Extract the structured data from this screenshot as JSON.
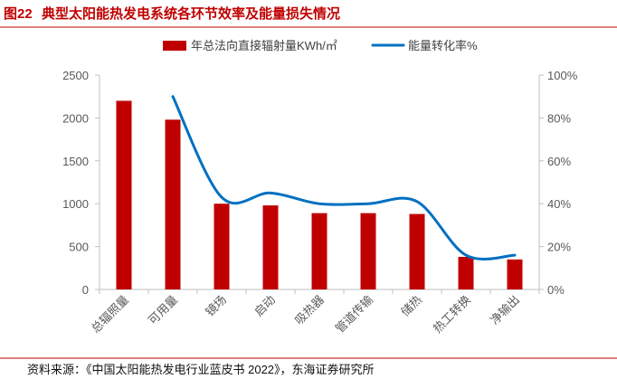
{
  "figure": {
    "label": "图22",
    "source": "资料来源：《中国太阳能热发电行业蓝皮书 2022》，东海证券研究所"
  },
  "colors": {
    "title": "#C00000",
    "bar": "#C00000",
    "line": "#0070C0",
    "axis_text": "#595959",
    "axis_line": "#BFBFBF",
    "rule": "#C00000"
  },
  "chart_data": {
    "type": "bar",
    "title": "典型太阳能热发电系统各环节效率及能量损失情况",
    "xlabel": "",
    "ylabel": "",
    "categories": [
      "总辐照量",
      "可用量",
      "镜场",
      "启动",
      "吸热器",
      "管道传输",
      "储热",
      "热工转换",
      "净输出"
    ],
    "series": [
      {
        "name": "年总法向直接辐射量KWh/㎡",
        "type": "bar",
        "axis": "left",
        "values": [
          2200,
          1980,
          1000,
          980,
          890,
          890,
          880,
          380,
          350
        ]
      },
      {
        "name": "能量转化率%",
        "type": "line",
        "axis": "right",
        "values": [
          null,
          90,
          43,
          45,
          40,
          40,
          41,
          16,
          16
        ]
      }
    ],
    "ylim": [
      0,
      2500
    ],
    "y_left_tick_values": [
      0,
      500,
      1000,
      1500,
      2000,
      2500
    ],
    "y_left_ticks": [
      "0",
      "500",
      "1000",
      "1500",
      "2000",
      "2500"
    ],
    "y2lim": [
      0,
      100
    ],
    "y_right_tick_values": [
      0,
      20,
      40,
      60,
      80,
      100
    ],
    "y_right_ticks": [
      "0%",
      "20%",
      "40%",
      "60%",
      "80%",
      "100%"
    ],
    "grid": false,
    "legend": "top"
  }
}
